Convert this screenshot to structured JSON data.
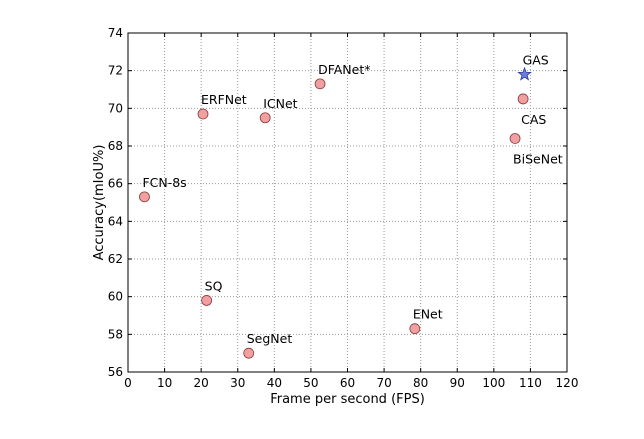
{
  "chart_data": {
    "type": "scatter",
    "title": "",
    "xlabel": "Frame per second (FPS)",
    "ylabel": "Accuracy(mIoU%)",
    "xlim": [
      0,
      120
    ],
    "ylim": [
      56,
      74
    ],
    "xticks": [
      "0",
      "10",
      "20",
      "30",
      "40",
      "50",
      "60",
      "70",
      "80",
      "90",
      "100",
      "110",
      "120"
    ],
    "yticks": [
      "56",
      "58",
      "60",
      "62",
      "64",
      "66",
      "68",
      "70",
      "72",
      "74"
    ],
    "grid": true,
    "legend": "none",
    "colors": {
      "point_fill": "#f0a0a0",
      "point_stroke": "#8b3a3a",
      "star_fill": "#6f7fd8",
      "star_stroke": "#2b3aa0",
      "grid": "#9a9a9a"
    },
    "points": [
      {
        "name": "FCN-8s",
        "x": 4.5,
        "y": 65.3,
        "marker": "circle",
        "label_pos": "above-right"
      },
      {
        "name": "ERFNet",
        "x": 20.5,
        "y": 69.7,
        "marker": "circle",
        "label_pos": "above-right"
      },
      {
        "name": "SQ",
        "x": 21.5,
        "y": 59.8,
        "marker": "circle",
        "label_pos": "above-right"
      },
      {
        "name": "SegNet",
        "x": 33,
        "y": 57.0,
        "marker": "circle",
        "label_pos": "above-right"
      },
      {
        "name": "ICNet",
        "x": 37.5,
        "y": 69.5,
        "marker": "circle",
        "label_pos": "above-right"
      },
      {
        "name": "DFANet*",
        "x": 52.5,
        "y": 71.3,
        "marker": "circle",
        "label_pos": "above-right"
      },
      {
        "name": "ENet",
        "x": 78.4,
        "y": 58.3,
        "marker": "circle",
        "label_pos": "above-right"
      },
      {
        "name": "BiSeNet",
        "x": 105.8,
        "y": 68.4,
        "marker": "circle",
        "label_pos": "below-right"
      },
      {
        "name": "CAS",
        "x": 108,
        "y": 70.5,
        "marker": "circle",
        "label_pos": "below-right"
      },
      {
        "name": "GAS",
        "x": 108.4,
        "y": 71.8,
        "marker": "star",
        "label_pos": "above-right"
      }
    ]
  }
}
